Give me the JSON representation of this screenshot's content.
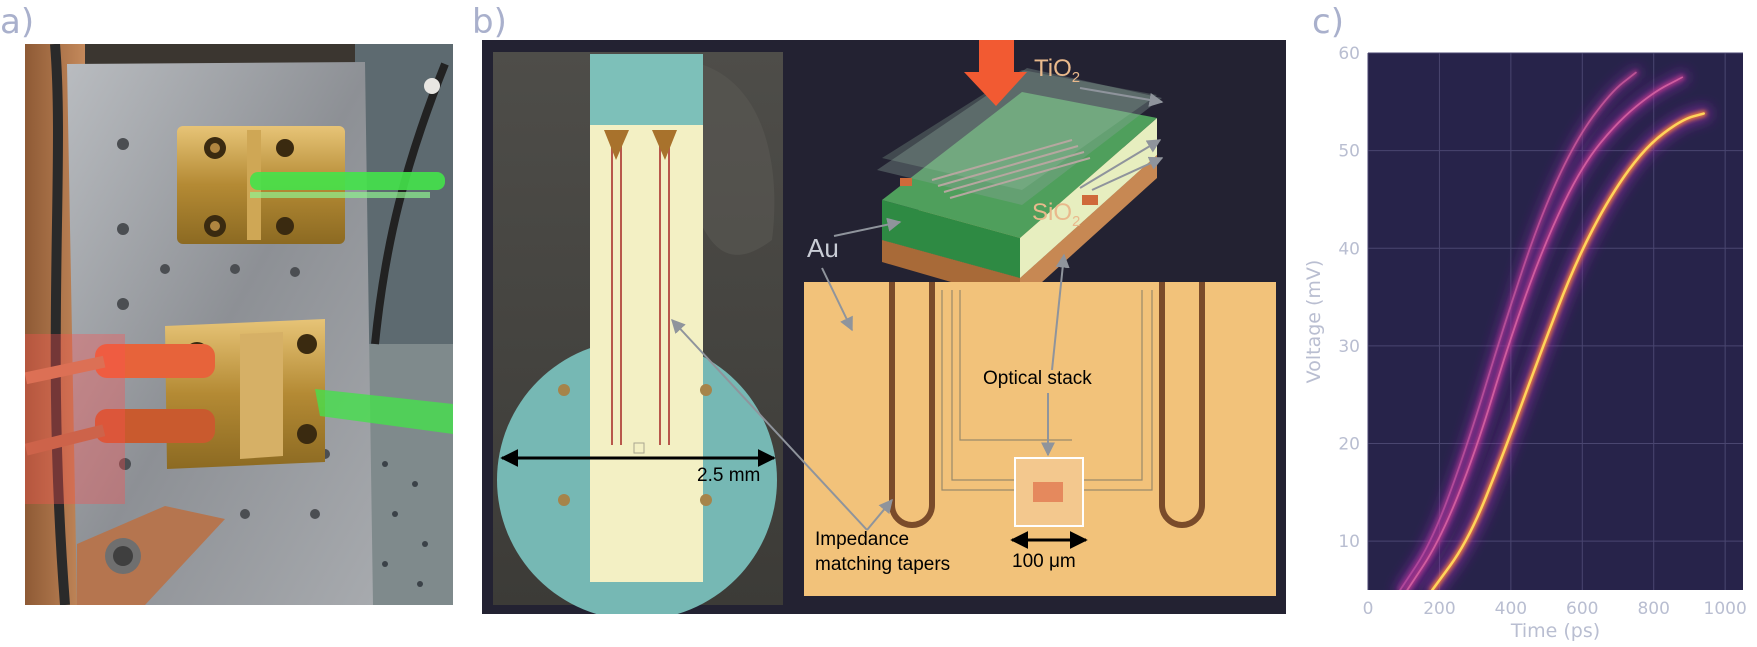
{
  "panel_labels": {
    "a": "a)",
    "b": "b)",
    "c": "c)"
  },
  "panel_b": {
    "chip_width_label": "2.5 mm",
    "au_label": "Au",
    "tio2_base": "TiO",
    "tio2_sub": "2",
    "sio2_base": "SiO",
    "sio2_sub": "2",
    "optical_stack_label": "Optical stack",
    "impedance_line1": "Impedance",
    "impedance_line2": "matching tapers",
    "scale_label": "100 μm"
  },
  "chart_data": {
    "type": "heatmap",
    "xlabel": "Time (ps)",
    "ylabel": "Voltage (mV)",
    "xlim": [
      0,
      1050
    ],
    "ylim": [
      5,
      60
    ],
    "xticks": [
      "0",
      "200",
      "400",
      "600",
      "800",
      "1000"
    ],
    "yticks": [
      "10",
      "20",
      "30",
      "40",
      "50",
      "60"
    ],
    "grid": true,
    "colormap": "magma (dark purple background, bright yellow maximum)",
    "series": [
      {
        "x": [
          110,
          200,
          300,
          400,
          500,
          600,
          700,
          800,
          880
        ],
        "y": [
          5,
          10,
          19,
          31,
          41,
          48.5,
          53,
          56,
          57.5
        ],
        "intensity": 0.6
      },
      {
        "x": [
          180,
          280,
          380,
          480,
          580,
          680,
          780,
          880,
          940
        ],
        "y": [
          5,
          10,
          19,
          29,
          38.5,
          45.5,
          50.5,
          53.2,
          53.8
        ],
        "intensity": 1.0
      },
      {
        "x": [
          90,
          180,
          280,
          380,
          480,
          580,
          680,
          750
        ],
        "y": [
          5,
          10,
          20,
          32,
          43,
          51,
          56,
          58
        ],
        "intensity": 0.35
      }
    ]
  }
}
